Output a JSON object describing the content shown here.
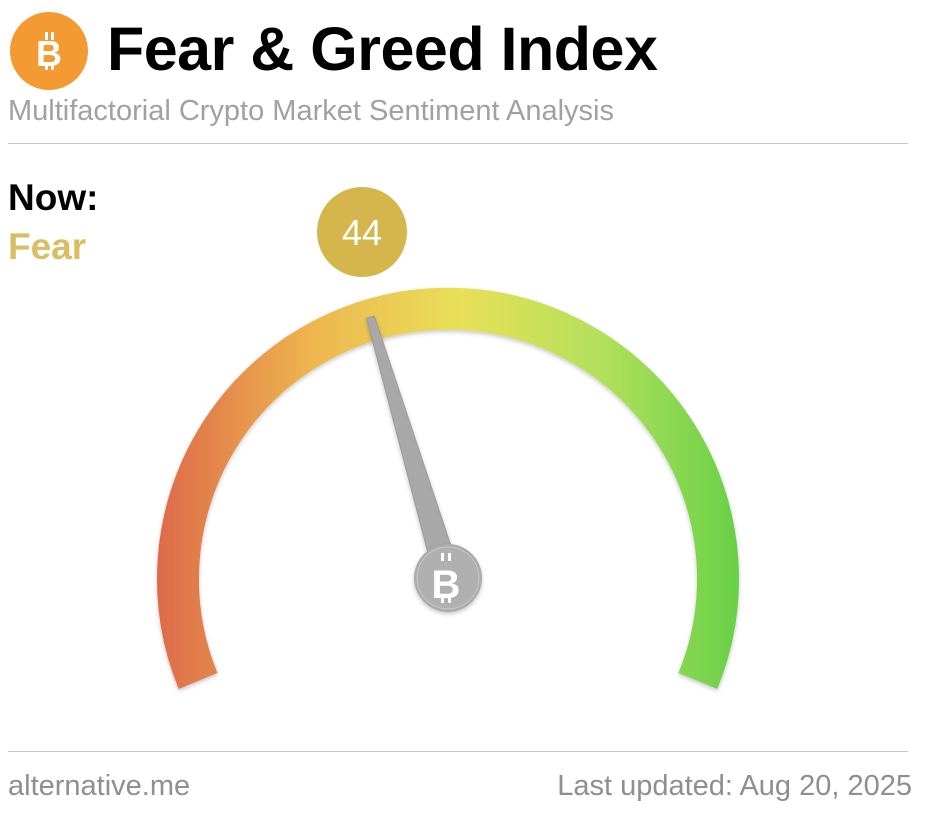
{
  "header": {
    "logo_icon": "bitcoin-icon",
    "title": "Fear & Greed Index",
    "subtitle": "Multifactorial Crypto Market Sentiment Analysis"
  },
  "now": {
    "label": "Now:",
    "classification": "Fear",
    "classification_color": "#d9be64"
  },
  "gauge": {
    "value": 44,
    "value_text": "44",
    "min": 0,
    "max": 100,
    "badge_color": "#d5b64d",
    "needle_color": "#a8a8a8",
    "hub_icon": "bitcoin-icon",
    "colors": {
      "extreme_fear": "#dd6a4a",
      "fear": "#eeb74f",
      "neutral": "#e8e058",
      "greed": "#b3e05b",
      "extreme_greed": "#67d048"
    }
  },
  "footer": {
    "source": "alternative.me",
    "last_updated": "Last updated: Aug 20, 2025"
  },
  "colors": {
    "brand_orange": "#f39a33",
    "text_gray": "#8f8f8f",
    "divider": "#c6c6c6"
  }
}
